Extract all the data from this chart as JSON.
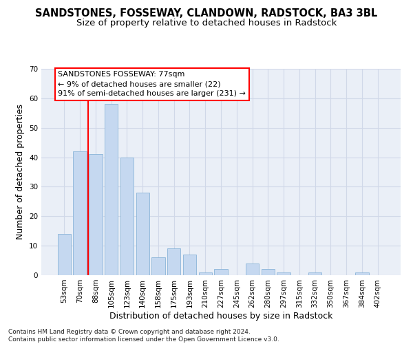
{
  "title": "SANDSTONES, FOSSEWAY, CLANDOWN, RADSTOCK, BA3 3BL",
  "subtitle": "Size of property relative to detached houses in Radstock",
  "xlabel": "Distribution of detached houses by size in Radstock",
  "ylabel": "Number of detached properties",
  "bar_color": "#c5d8f0",
  "bar_edge_color": "#8ab4d8",
  "grid_color": "#d0d8e8",
  "background_color": "#eaeff7",
  "categories": [
    "53sqm",
    "70sqm",
    "88sqm",
    "105sqm",
    "123sqm",
    "140sqm",
    "158sqm",
    "175sqm",
    "193sqm",
    "210sqm",
    "227sqm",
    "245sqm",
    "262sqm",
    "280sqm",
    "297sqm",
    "315sqm",
    "332sqm",
    "350sqm",
    "367sqm",
    "384sqm",
    "402sqm"
  ],
  "values": [
    14,
    42,
    41,
    58,
    40,
    28,
    6,
    9,
    7,
    1,
    2,
    0,
    4,
    2,
    1,
    0,
    1,
    0,
    0,
    1,
    0
  ],
  "ylim": [
    0,
    70
  ],
  "yticks": [
    0,
    10,
    20,
    30,
    40,
    50,
    60,
    70
  ],
  "red_line_x": 1.5,
  "annotation_text": "SANDSTONES FOSSEWAY: 77sqm\n← 9% of detached houses are smaller (22)\n91% of semi-detached houses are larger (231) →",
  "footnote": "Contains HM Land Registry data © Crown copyright and database right 2024.\nContains public sector information licensed under the Open Government Licence v3.0.",
  "title_fontsize": 10.5,
  "subtitle_fontsize": 9.5,
  "xlabel_fontsize": 9,
  "ylabel_fontsize": 9,
  "tick_fontsize": 7.5,
  "annotation_fontsize": 8,
  "footnote_fontsize": 6.5
}
